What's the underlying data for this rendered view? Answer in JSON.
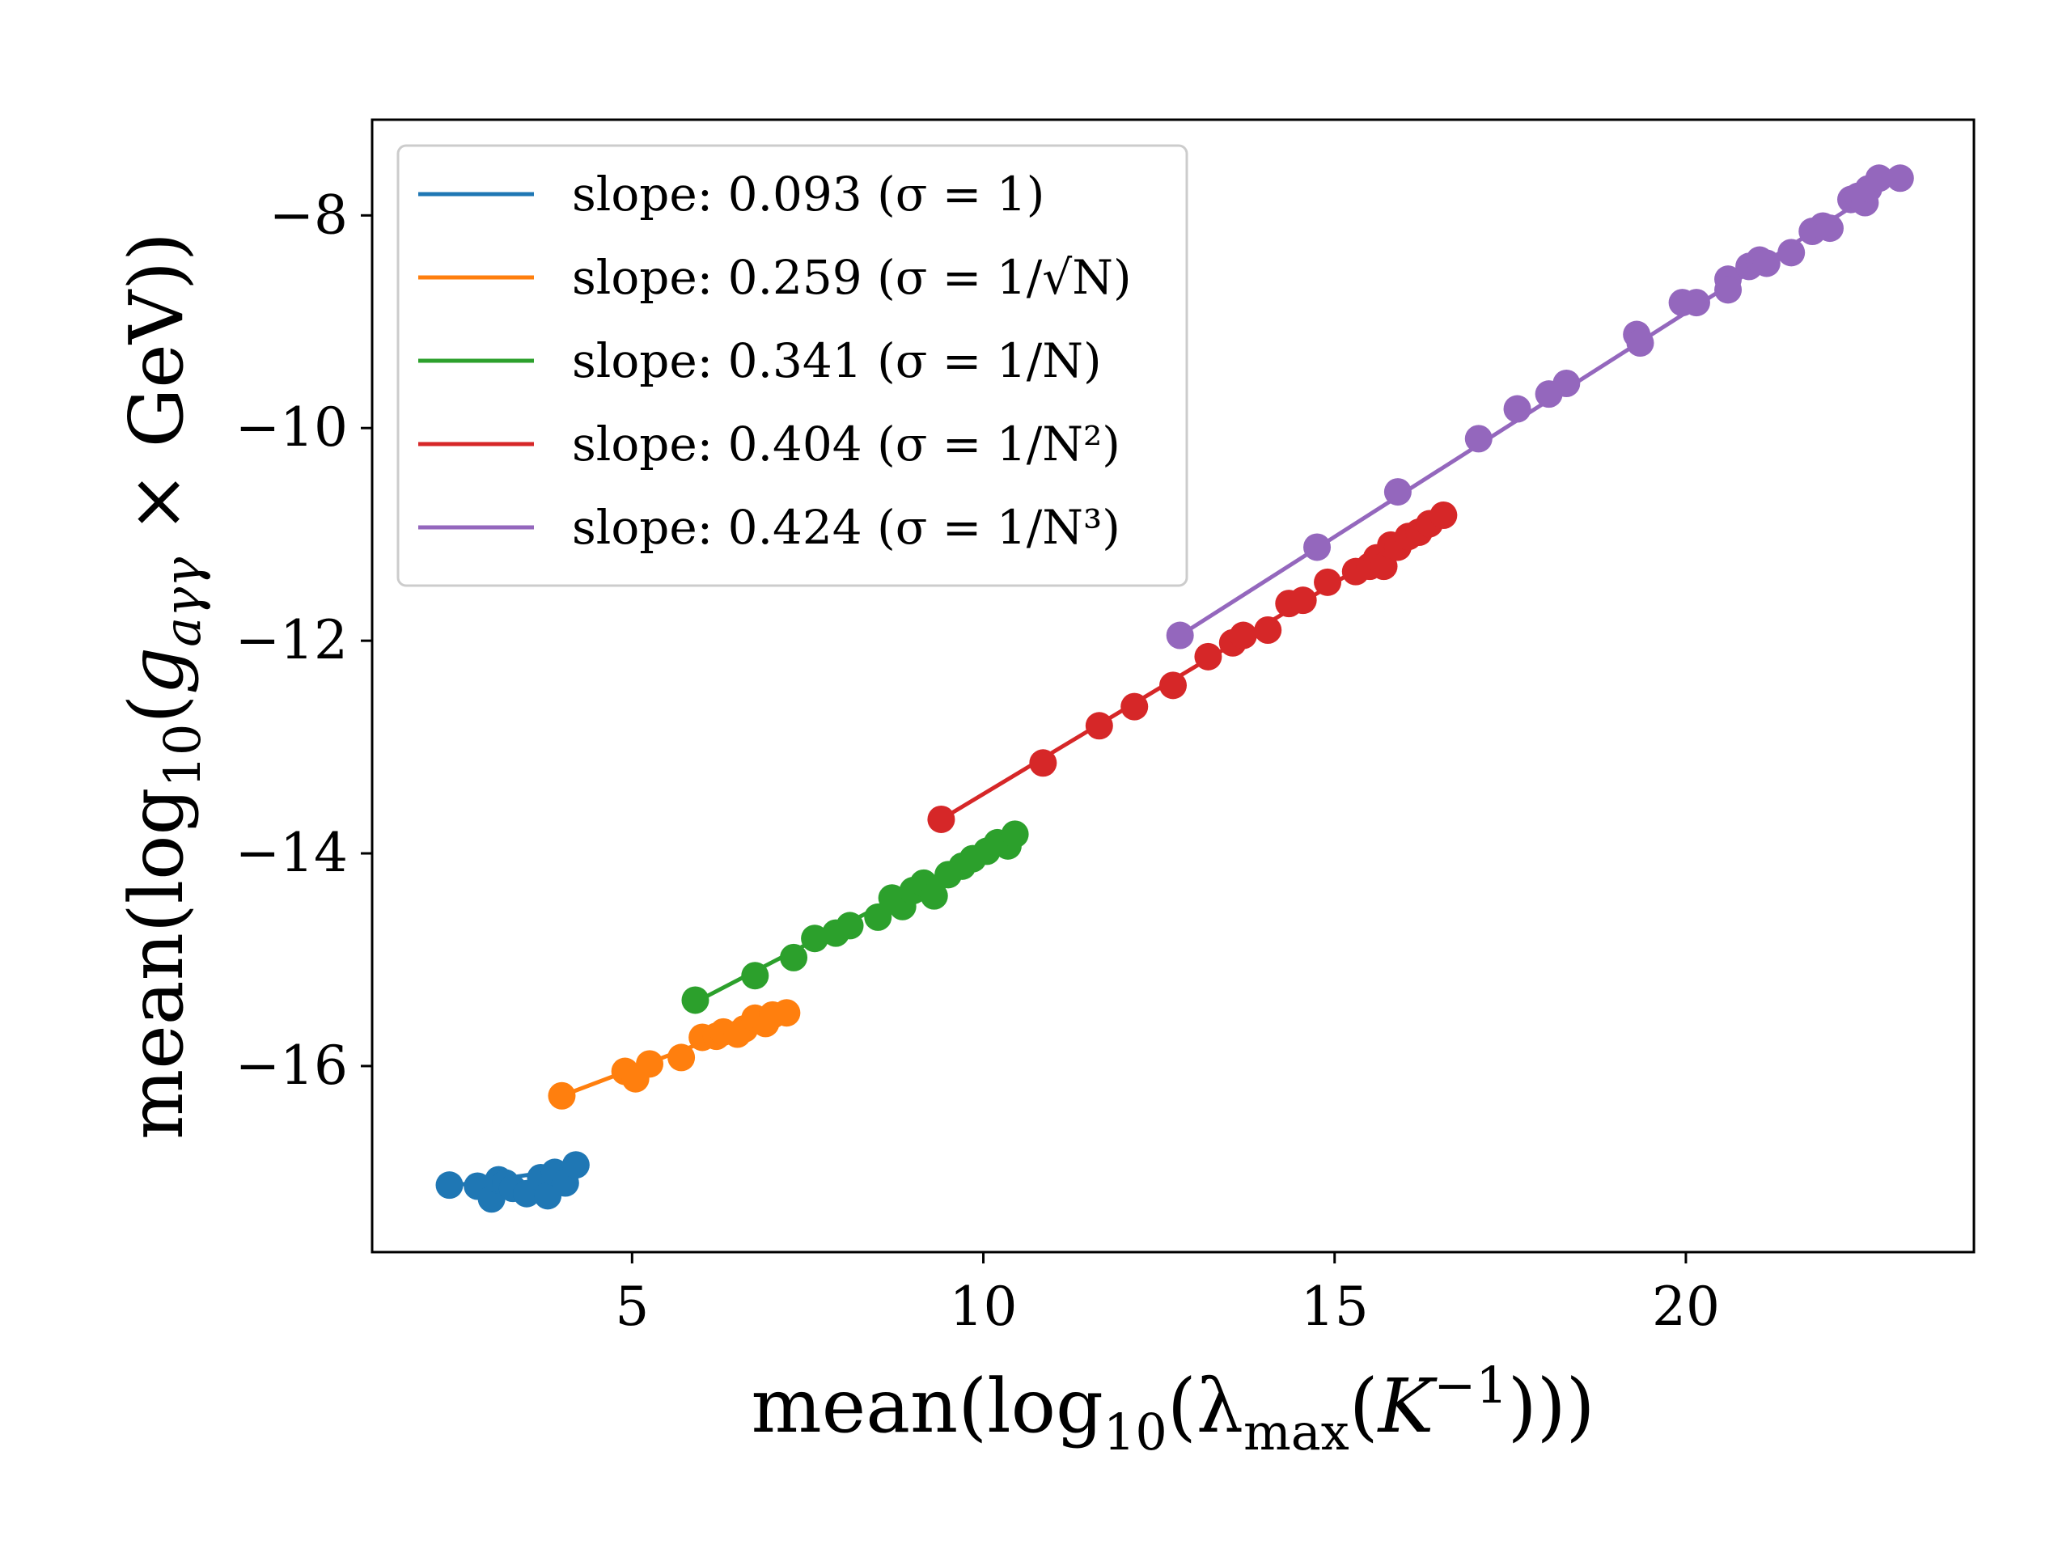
{
  "chart_data": {
    "type": "scatter",
    "title": "",
    "xlabel": "mean(log10(λmax(K^-1)))",
    "ylabel": "mean(log10(gaγγ × GeV))",
    "xlim": [
      1.3,
      24.1
    ],
    "ylim": [
      -17.75,
      -7.1
    ],
    "xticks": [
      5,
      10,
      15,
      20
    ],
    "yticks": [
      -16,
      -14,
      -12,
      -10,
      -8
    ],
    "xtick_labels": [
      "5",
      "10",
      "15",
      "20"
    ],
    "ytick_labels": [
      "−16",
      "−14",
      "−12",
      "−10",
      "−8"
    ],
    "grid": false,
    "legend_position": "upper-left",
    "series": [
      {
        "name": "slope: 0.093 (σ = 1)",
        "color": "#1f77b4",
        "fit": [
          [
            2.4,
            -17.13
          ],
          [
            4.3,
            -16.95
          ]
        ],
        "points": [
          [
            2.4,
            -17.12
          ],
          [
            2.8,
            -17.13
          ],
          [
            3.0,
            -17.25
          ],
          [
            3.1,
            -17.07
          ],
          [
            3.2,
            -17.1
          ],
          [
            3.3,
            -17.15
          ],
          [
            3.5,
            -17.2
          ],
          [
            3.7,
            -17.05
          ],
          [
            3.8,
            -17.22
          ],
          [
            3.9,
            -17.0
          ],
          [
            4.05,
            -17.1
          ],
          [
            4.2,
            -16.93
          ]
        ]
      },
      {
        "name": "slope: 0.259 (σ = 1/√N)",
        "color": "#ff7f0e",
        "fit": [
          [
            4.0,
            -16.28
          ],
          [
            7.2,
            -15.48
          ]
        ],
        "points": [
          [
            4.0,
            -16.28
          ],
          [
            4.9,
            -16.05
          ],
          [
            5.05,
            -16.12
          ],
          [
            5.25,
            -15.98
          ],
          [
            5.7,
            -15.92
          ],
          [
            6.0,
            -15.73
          ],
          [
            6.2,
            -15.72
          ],
          [
            6.3,
            -15.68
          ],
          [
            6.5,
            -15.7
          ],
          [
            6.6,
            -15.65
          ],
          [
            6.75,
            -15.55
          ],
          [
            6.9,
            -15.6
          ],
          [
            7.0,
            -15.52
          ],
          [
            7.2,
            -15.5
          ]
        ]
      },
      {
        "name": "slope: 0.341 (σ = 1/N)",
        "color": "#2ca02c",
        "fit": [
          [
            5.9,
            -15.4
          ],
          [
            10.5,
            -13.82
          ]
        ],
        "points": [
          [
            5.9,
            -15.38
          ],
          [
            6.75,
            -15.15
          ],
          [
            7.3,
            -14.98
          ],
          [
            7.6,
            -14.8
          ],
          [
            7.9,
            -14.75
          ],
          [
            8.1,
            -14.68
          ],
          [
            8.5,
            -14.6
          ],
          [
            8.7,
            -14.42
          ],
          [
            8.85,
            -14.5
          ],
          [
            9.0,
            -14.35
          ],
          [
            9.15,
            -14.28
          ],
          [
            9.3,
            -14.4
          ],
          [
            9.5,
            -14.2
          ],
          [
            9.7,
            -14.12
          ],
          [
            9.85,
            -14.05
          ],
          [
            10.05,
            -13.98
          ],
          [
            10.2,
            -13.9
          ],
          [
            10.35,
            -13.93
          ],
          [
            10.45,
            -13.82
          ]
        ]
      },
      {
        "name": "slope: 0.404 (σ = 1/N²)",
        "color": "#d62728",
        "fit": [
          [
            9.4,
            -13.68
          ],
          [
            16.6,
            -10.82
          ]
        ],
        "points": [
          [
            9.4,
            -13.68
          ],
          [
            10.85,
            -13.15
          ],
          [
            11.65,
            -12.8
          ],
          [
            12.15,
            -12.62
          ],
          [
            12.7,
            -12.42
          ],
          [
            13.2,
            -12.15
          ],
          [
            13.55,
            -12.02
          ],
          [
            13.7,
            -11.95
          ],
          [
            14.05,
            -11.9
          ],
          [
            14.35,
            -11.65
          ],
          [
            14.55,
            -11.62
          ],
          [
            14.9,
            -11.45
          ],
          [
            15.3,
            -11.35
          ],
          [
            15.5,
            -11.3
          ],
          [
            15.6,
            -11.22
          ],
          [
            15.7,
            -11.3
          ],
          [
            15.8,
            -11.1
          ],
          [
            15.9,
            -11.12
          ],
          [
            16.05,
            -11.02
          ],
          [
            16.2,
            -10.98
          ],
          [
            16.35,
            -10.9
          ],
          [
            16.55,
            -10.82
          ]
        ]
      },
      {
        "name": "slope: 0.424 (σ = 1/N³)",
        "color": "#9467bd",
        "fit": [
          [
            12.8,
            -11.95
          ],
          [
            23.0,
            -7.65
          ]
        ],
        "points": [
          [
            12.8,
            -11.95
          ],
          [
            14.75,
            -11.12
          ],
          [
            15.9,
            -10.6
          ],
          [
            17.05,
            -10.1
          ],
          [
            17.6,
            -9.82
          ],
          [
            18.05,
            -9.68
          ],
          [
            18.3,
            -9.58
          ],
          [
            19.3,
            -9.12
          ],
          [
            19.35,
            -9.2
          ],
          [
            19.95,
            -8.82
          ],
          [
            20.15,
            -8.82
          ],
          [
            20.6,
            -8.6
          ],
          [
            20.6,
            -8.7
          ],
          [
            20.9,
            -8.48
          ],
          [
            21.05,
            -8.42
          ],
          [
            21.15,
            -8.45
          ],
          [
            21.5,
            -8.35
          ],
          [
            21.8,
            -8.15
          ],
          [
            21.95,
            -8.1
          ],
          [
            22.05,
            -8.12
          ],
          [
            22.35,
            -7.85
          ],
          [
            22.45,
            -7.82
          ],
          [
            22.55,
            -7.88
          ],
          [
            22.6,
            -7.75
          ],
          [
            22.75,
            -7.65
          ],
          [
            23.05,
            -7.65
          ]
        ]
      }
    ]
  }
}
